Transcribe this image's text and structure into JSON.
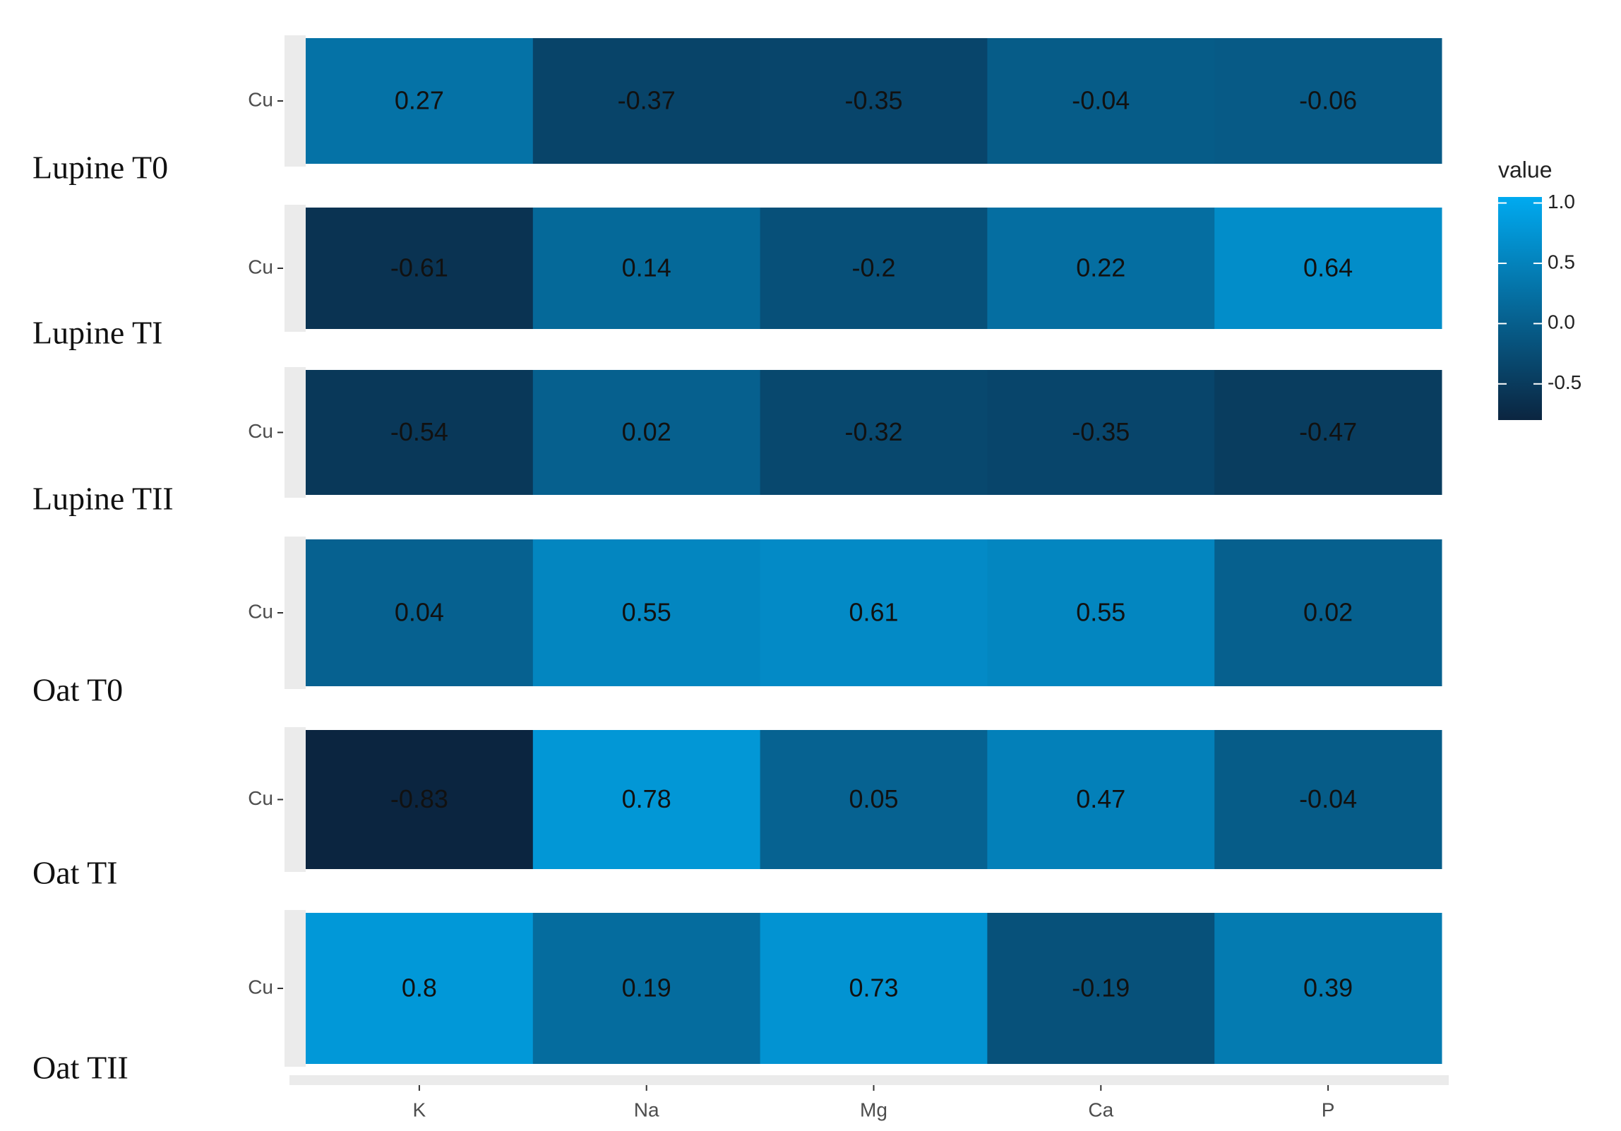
{
  "chart_data": {
    "type": "heatmap",
    "x_categories": [
      "K",
      "Na",
      "Mg",
      "Ca",
      "P"
    ],
    "row_label": "Cu",
    "panels": [
      {
        "title": "Lupine T0",
        "values": [
          0.27,
          -0.37,
          -0.35,
          -0.04,
          -0.06
        ]
      },
      {
        "title": "Lupine TI",
        "values": [
          -0.61,
          0.14,
          -0.2,
          0.22,
          0.64
        ]
      },
      {
        "title": "Lupine TII",
        "values": [
          -0.54,
          0.02,
          -0.32,
          -0.35,
          -0.47
        ]
      },
      {
        "title": "Oat T0",
        "values": [
          0.04,
          0.55,
          0.61,
          0.55,
          0.02
        ]
      },
      {
        "title": "Oat TI",
        "values": [
          -0.83,
          0.78,
          0.05,
          0.47,
          -0.04
        ]
      },
      {
        "title": "Oat TII",
        "values": [
          0.8,
          0.19,
          0.73,
          -0.19,
          0.39
        ]
      }
    ],
    "colorbar": {
      "title": "value",
      "clim": [
        -0.8,
        1.05
      ],
      "ticks": [
        {
          "value": 1,
          "label": "1.0"
        },
        0.5,
        {
          "value": 0,
          "label": "0.0"
        },
        -0.5
      ],
      "low_color": "#0b2540",
      "high_color": "#00aaf0"
    }
  }
}
